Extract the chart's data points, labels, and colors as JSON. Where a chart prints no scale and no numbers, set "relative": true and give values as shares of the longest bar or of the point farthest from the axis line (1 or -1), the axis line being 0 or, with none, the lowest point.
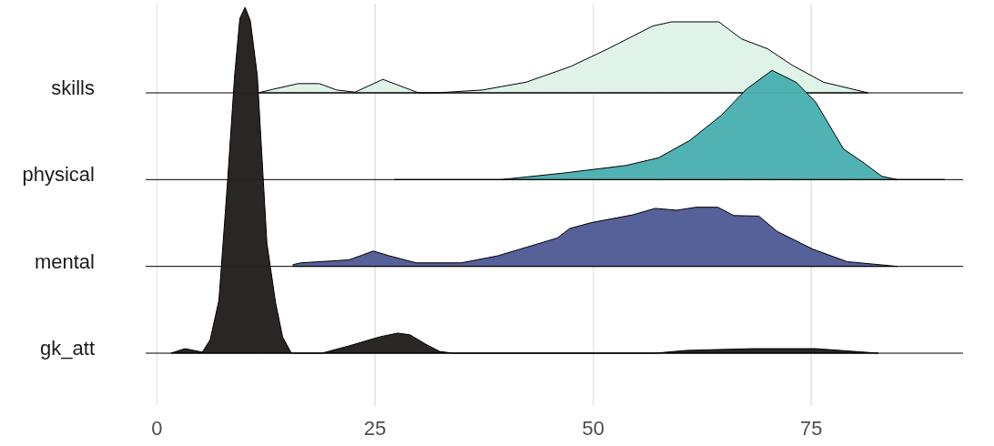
{
  "chart_data": [
    {
      "type": "area",
      "relative": true,
      "xlim": [
        -1.3,
        92.4
      ],
      "xticks": [
        0,
        25,
        50,
        75
      ],
      "grid": "x",
      "tick_labels": false,
      "series": [
        {
          "name": "skills",
          "color": "#dff3e7",
          "x": [
            11.6,
            13.3,
            16.2,
            18.6,
            20.6,
            22.7,
            25.9,
            27.6,
            30.0,
            32.1,
            37.3,
            42.3,
            47.4,
            51.7,
            56.8,
            59.0,
            64.4,
            67.0,
            70.0,
            72.8,
            76.4,
            81.5
          ],
          "values": [
            0,
            0.05,
            0.13,
            0.13,
            0.04,
            0.01,
            0.19,
            0.11,
            0,
            0,
            0.04,
            0.15,
            0.37,
            0.62,
            0.94,
            1,
            1,
            0.76,
            0.62,
            0.39,
            0.15,
            0
          ]
        }
      ]
    },
    {
      "type": "area",
      "relative": true,
      "xlim": [
        -1.3,
        92.4
      ],
      "xticks": [
        0,
        25,
        50,
        75
      ],
      "grid": "x",
      "tick_labels": false,
      "series": [
        {
          "name": "physical",
          "color": "#4aafb0",
          "x": [
            27.2,
            39.4,
            46.6,
            53.8,
            57.5,
            61.1,
            64.7,
            67.6,
            70.5,
            73.3,
            75.5,
            78.7,
            80.9,
            83.1,
            84.9,
            90.3
          ],
          "values": [
            0,
            0,
            0.06,
            0.13,
            0.2,
            0.36,
            0.59,
            0.83,
            1,
            0.89,
            0.71,
            0.28,
            0.16,
            0.03,
            0,
            0
          ]
        }
      ]
    },
    {
      "type": "area",
      "relative": true,
      "xlim": [
        -1.3,
        92.4
      ],
      "xticks": [
        0,
        25,
        50,
        75
      ],
      "grid": "x",
      "tick_labels": false,
      "series": [
        {
          "name": "mental",
          "color": "#515b96",
          "x": [
            15.6,
            16.5,
            22.0,
            23.5,
            24.8,
            26.6,
            29.7,
            34.9,
            39.1,
            45.9,
            47.3,
            49.8,
            54.5,
            57.1,
            59.6,
            61.8,
            64.3,
            66.1,
            69.0,
            71.1,
            75.2,
            79.1,
            84.9
          ],
          "values": [
            0.03,
            0.06,
            0.11,
            0.19,
            0.26,
            0.18,
            0.06,
            0.06,
            0.18,
            0.48,
            0.64,
            0.74,
            0.87,
            0.98,
            0.95,
            1,
            1,
            0.86,
            0.85,
            0.59,
            0.29,
            0.08,
            0
          ]
        }
      ]
    },
    {
      "type": "area",
      "relative": true,
      "xlim": [
        -1.3,
        92.4
      ],
      "xticks": [
        0,
        25,
        50,
        75
      ],
      "grid": "x",
      "tick_labels": "x",
      "series": [
        {
          "name": "gk_att",
          "color": "#231f1f",
          "x": [
            1.6,
            3.2,
            5.2,
            6.1,
            7.1,
            8.1,
            8.9,
            9.5,
            10.1,
            10.7,
            11.5,
            12.0,
            12.6,
            13.6,
            14.4,
            15.4,
            18.9,
            22.0,
            25.5,
            27.6,
            29.0,
            30.8,
            32.4,
            33.9,
            57.1,
            60.7,
            68.3,
            75.5,
            82.7
          ],
          "values": [
            0,
            0.013,
            0.003,
            0.039,
            0.153,
            0.5,
            0.803,
            0.968,
            1,
            0.961,
            0.803,
            0.582,
            0.318,
            0.145,
            0.047,
            0,
            0,
            0.021,
            0.047,
            0.058,
            0.053,
            0.026,
            0.005,
            0,
            0,
            0.008,
            0.013,
            0.013,
            0
          ]
        }
      ]
    }
  ]
}
